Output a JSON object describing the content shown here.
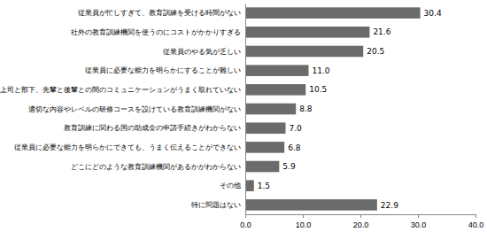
{
  "chart_data": {
    "type": "bar",
    "orientation": "horizontal",
    "data_labels": true,
    "color": "#6b6b6b",
    "categories": [
      "従業員が忙しすぎて、教育訓練を受ける時間がない",
      "社外の教育訓練機関を使うのにコストがかかりすぎる",
      "従業員のやる気が乏しい",
      "従業員に必要な能力を明らかにすることが難しい",
      "上司と部下、先輩と後輩との間のコミュニケーションがうまく取れていない",
      "適切な内容やレベルの研修コースを設けている教育訓練機関がない",
      "教育訓練に関わる国の助成金の申請手続きがわからない",
      "従業員に必要な能力を明らかにできても、うまく伝えることができない",
      "どこにどのような教育訓練機関があるかがわからない",
      "その他",
      "特に問題はない"
    ],
    "values": [
      30.4,
      21.6,
      20.5,
      11.0,
      10.5,
      8.8,
      7.0,
      6.8,
      5.9,
      1.5,
      22.9
    ],
    "value_labels": [
      "30.4",
      "21.6",
      "20.5",
      "11.0",
      "10.5",
      "8.8",
      "7.0",
      "6.8",
      "5.9",
      "1.5",
      "22.9"
    ],
    "xlim": [
      0,
      40
    ],
    "xticks": [
      {
        "value": 0,
        "label": "0.0"
      },
      {
        "value": 10,
        "label": "10.0"
      },
      {
        "value": 20,
        "label": "20.0"
      },
      {
        "value": 30,
        "label": "30.0"
      },
      {
        "value": 40,
        "label": "40.0"
      }
    ]
  }
}
